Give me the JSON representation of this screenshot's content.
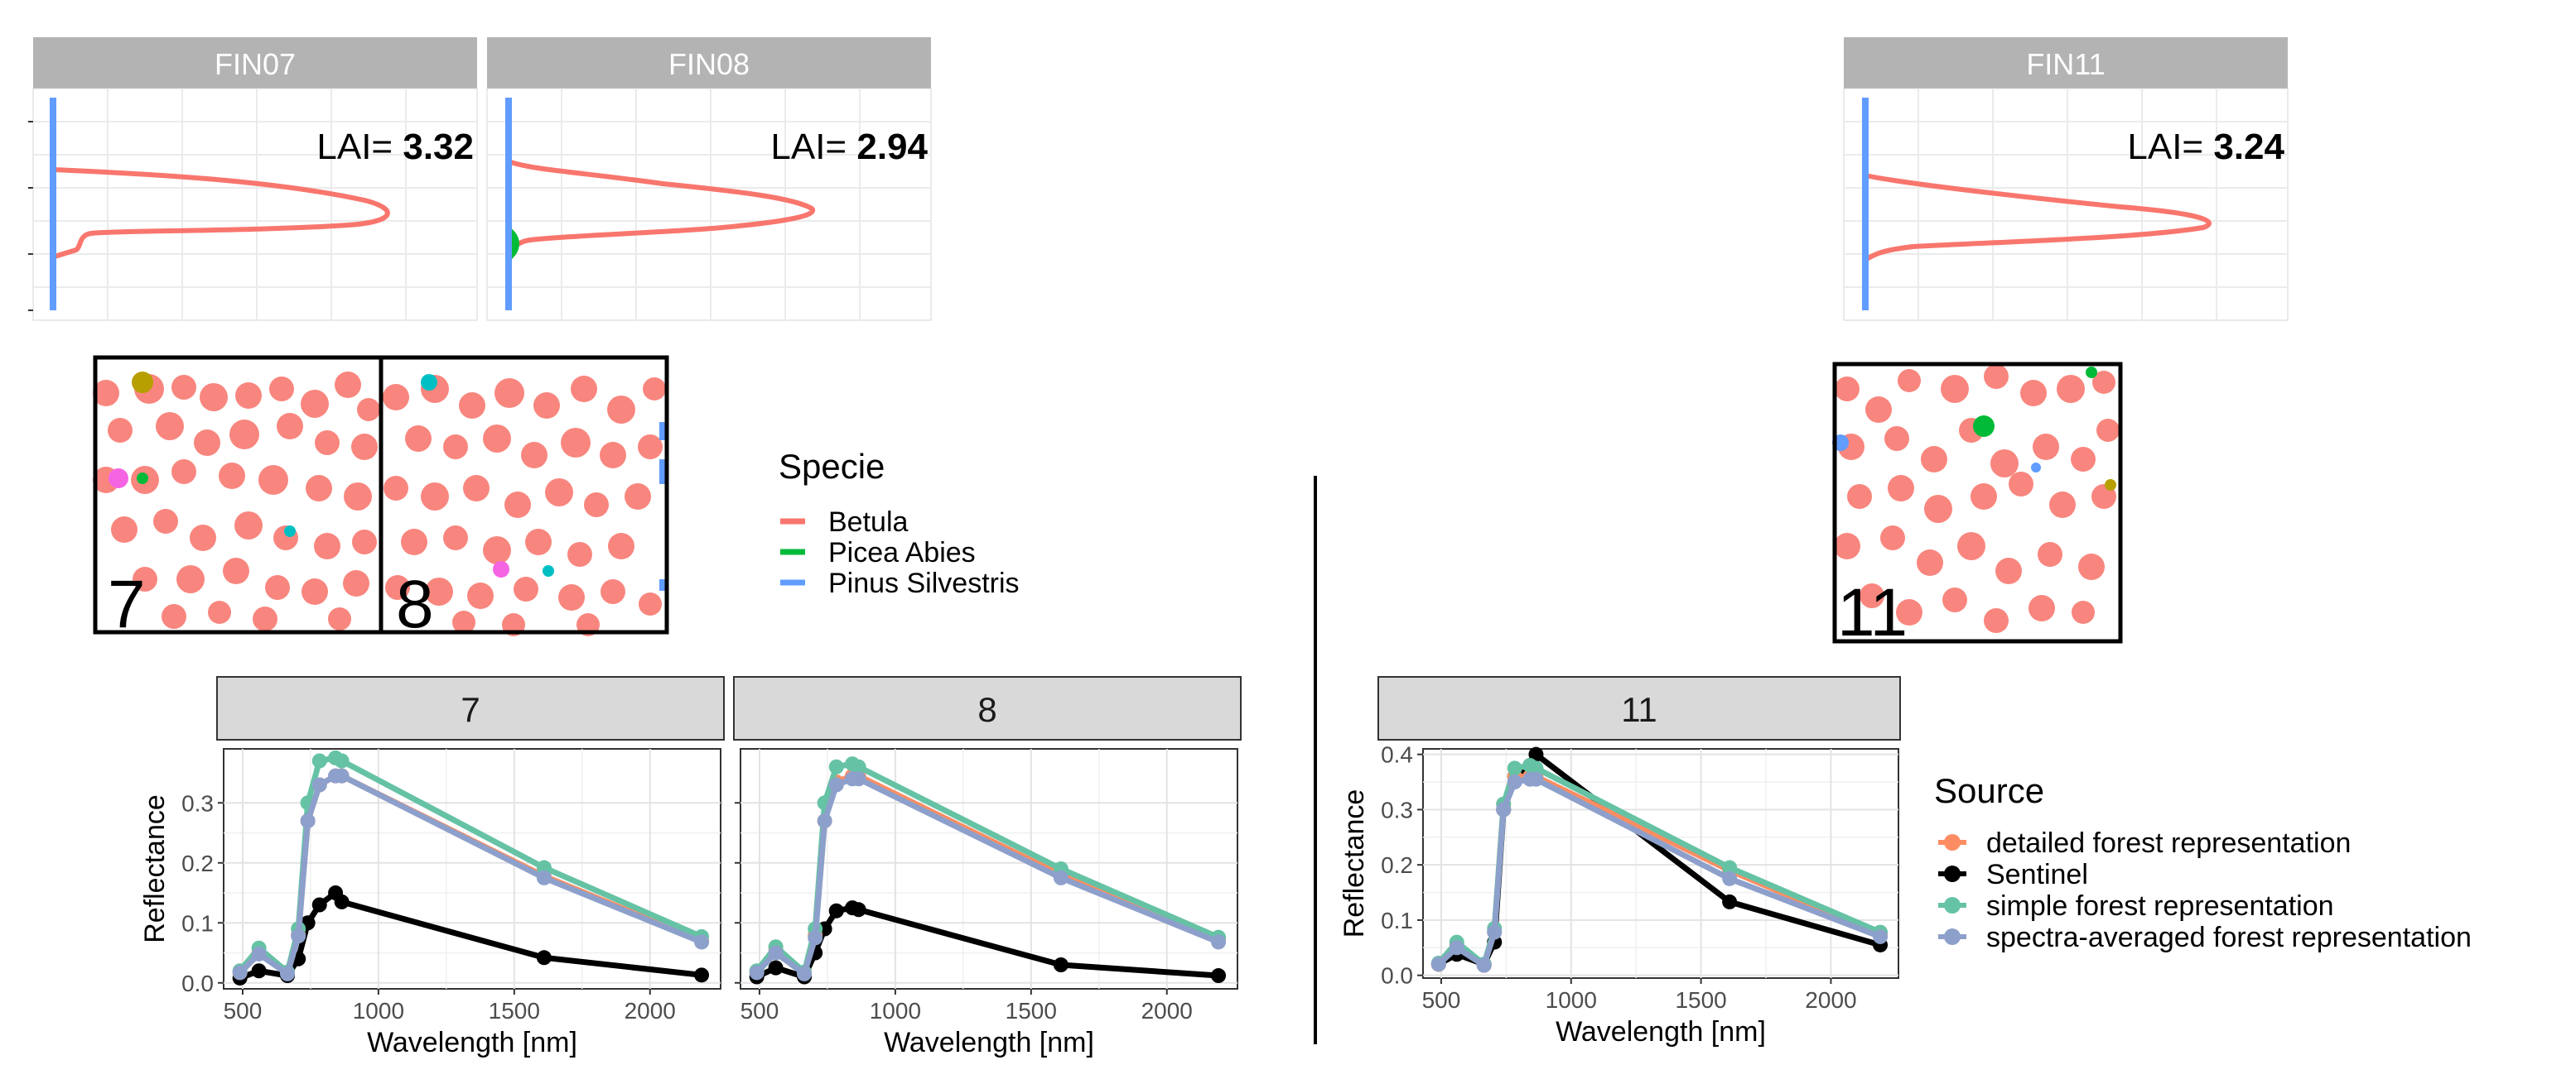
{
  "lai_panels": [
    {
      "strip": "FIN07",
      "lai_prefix": "LAI= ",
      "lai_value": "3.32"
    },
    {
      "strip": "FIN08",
      "lai_prefix": "LAI= ",
      "lai_value": "2.94"
    },
    {
      "strip": "FIN11",
      "lai_prefix": "LAI= ",
      "lai_value": "3.24"
    }
  ],
  "maps": [
    {
      "label": "7"
    },
    {
      "label": "8"
    },
    {
      "label": "11"
    }
  ],
  "specie_legend": {
    "title": "Specie",
    "items": [
      {
        "name": "Betula",
        "color": "#F8766D"
      },
      {
        "name": "Picea Abies",
        "color": "#00BA38"
      },
      {
        "name": "Pinus Silvestris",
        "color": "#619CFF"
      }
    ]
  },
  "source_legend": {
    "title": "Source",
    "items": [
      {
        "name": "detailed forest representation",
        "color": "#FC8D62"
      },
      {
        "name": "Sentinel",
        "color": "#000000"
      },
      {
        "name": "simple forest representation",
        "color": "#66C2A5"
      },
      {
        "name": "spectra-averaged forest representation",
        "color": "#8DA0CB"
      }
    ]
  },
  "chart_data": [
    {
      "type": "line",
      "facet": "7",
      "xlabel": "Wavelength [nm]",
      "ylabel": "Reflectance",
      "xlim": [
        430,
        2260
      ],
      "ylim": [
        -0.01,
        0.39
      ],
      "x_ticks": [
        500,
        1000,
        1500,
        2000
      ],
      "y_ticks": [
        0.0,
        0.1,
        0.2,
        0.3
      ],
      "y_tick_labels": [
        "0.0",
        "0.1",
        "0.2",
        "0.3"
      ],
      "x": [
        490,
        560,
        665,
        705,
        740,
        783,
        842,
        865,
        1610,
        2190
      ],
      "series": [
        {
          "name": "detailed forest representation",
          "values": [
            0.017,
            0.05,
            0.016,
            0.08,
            0.27,
            0.33,
            0.345,
            0.345,
            0.178,
            0.07
          ]
        },
        {
          "name": "Sentinel",
          "values": [
            0.008,
            0.02,
            0.012,
            0.04,
            0.1,
            0.13,
            0.15,
            0.135,
            0.042,
            0.013
          ]
        },
        {
          "name": "simple forest representation",
          "values": [
            0.02,
            0.058,
            0.018,
            0.09,
            0.3,
            0.37,
            0.375,
            0.37,
            0.192,
            0.077
          ]
        },
        {
          "name": "spectra-averaged forest representation",
          "values": [
            0.017,
            0.048,
            0.015,
            0.078,
            0.27,
            0.33,
            0.345,
            0.345,
            0.175,
            0.068
          ]
        }
      ]
    },
    {
      "type": "line",
      "facet": "8",
      "xlabel": "Wavelength [nm]",
      "ylabel": "",
      "xlim": [
        430,
        2260
      ],
      "ylim": [
        -0.01,
        0.39
      ],
      "x_ticks": [
        500,
        1000,
        1500,
        2000
      ],
      "y_ticks": [
        0.0,
        0.1,
        0.2,
        0.3
      ],
      "y_tick_labels": [],
      "x": [
        490,
        560,
        665,
        705,
        740,
        783,
        842,
        865,
        1610,
        2190
      ],
      "series": [
        {
          "name": "detailed forest representation",
          "values": [
            0.018,
            0.055,
            0.016,
            0.08,
            0.27,
            0.335,
            0.345,
            0.345,
            0.18,
            0.07
          ]
        },
        {
          "name": "Sentinel",
          "values": [
            0.01,
            0.025,
            0.01,
            0.05,
            0.09,
            0.12,
            0.125,
            0.122,
            0.03,
            0.012
          ]
        },
        {
          "name": "simple forest representation",
          "values": [
            0.02,
            0.06,
            0.018,
            0.09,
            0.3,
            0.36,
            0.365,
            0.36,
            0.19,
            0.076
          ]
        },
        {
          "name": "spectra-averaged forest representation",
          "values": [
            0.017,
            0.05,
            0.015,
            0.075,
            0.27,
            0.33,
            0.34,
            0.34,
            0.175,
            0.068
          ]
        }
      ]
    },
    {
      "type": "line",
      "facet": "11",
      "xlabel": "Wavelength [nm]",
      "ylabel": "Reflectance",
      "xlim": [
        430,
        2260
      ],
      "ylim": [
        -0.005,
        0.41
      ],
      "x_ticks": [
        500,
        1000,
        1500,
        2000
      ],
      "y_ticks": [
        0.0,
        0.1,
        0.2,
        0.3,
        0.4
      ],
      "y_tick_labels": [
        "0.0",
        "0.1",
        "0.2",
        "0.3",
        "0.4"
      ],
      "x": [
        490,
        560,
        665,
        705,
        740,
        783,
        842,
        865,
        1610,
        2190
      ],
      "series": [
        {
          "name": "detailed forest representation",
          "values": [
            0.02,
            0.055,
            0.018,
            0.08,
            0.31,
            0.36,
            0.36,
            0.36,
            0.19,
            0.074
          ]
        },
        {
          "name": "Sentinel",
          "values": [
            0.02,
            0.038,
            0.02,
            0.06,
            0.3,
            0.36,
            0.38,
            0.4,
            0.133,
            0.055
          ]
        },
        {
          "name": "simple forest representation",
          "values": [
            0.022,
            0.06,
            0.02,
            0.085,
            0.31,
            0.375,
            0.38,
            0.375,
            0.195,
            0.078
          ]
        },
        {
          "name": "spectra-averaged forest representation",
          "values": [
            0.02,
            0.05,
            0.018,
            0.078,
            0.3,
            0.35,
            0.355,
            0.355,
            0.175,
            0.07
          ]
        }
      ]
    }
  ]
}
